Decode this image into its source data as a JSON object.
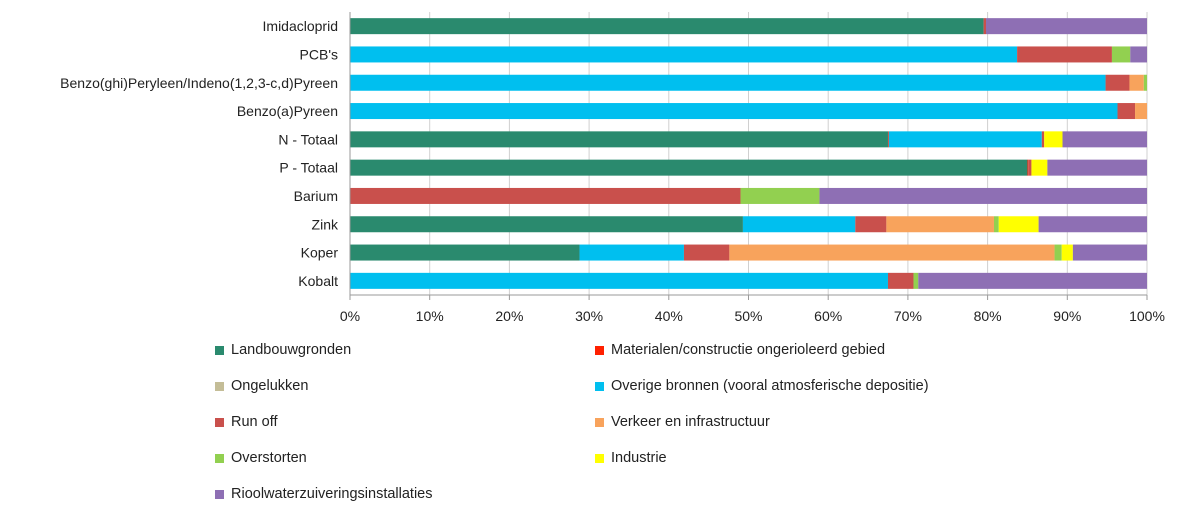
{
  "chart_data": {
    "type": "bar",
    "orientation": "horizontal",
    "stacked": true,
    "percent": true,
    "categories": [
      "Imidacloprid",
      "PCB's",
      "Benzo(ghi)Peryleen/Indeno(1,2,3-c,d)Pyreen",
      "Benzo(a)Pyreen",
      "N - Totaal",
      "P - Totaal",
      "Barium",
      "Zink",
      "Koper",
      "Kobalt"
    ],
    "series": [
      {
        "name": "Landbouwgronden",
        "color": "#2a8a6e",
        "values": [
          79.5,
          0,
          0,
          0,
          67.5,
          85,
          0,
          49.3,
          28.8,
          0
        ]
      },
      {
        "name": "Materialen/constructie ongerioleerd gebied",
        "color": "#ff2000",
        "values": [
          0,
          0,
          0,
          0,
          0.1,
          0.1,
          0,
          0,
          0,
          0
        ]
      },
      {
        "name": "Ongelukken",
        "color": "#c4bd97",
        "values": [
          0,
          0,
          0,
          0,
          0,
          0,
          0,
          0,
          0,
          0
        ]
      },
      {
        "name": "Overige bronnen (vooral atmosferische depositie)",
        "color": "#00bfef",
        "values": [
          0,
          83.7,
          94.8,
          96.3,
          19.2,
          0,
          0,
          14.1,
          13.1,
          67.5
        ]
      },
      {
        "name": "Run off",
        "color": "#c9504c",
        "values": [
          0.3,
          11.9,
          3,
          2.2,
          0.3,
          0.4,
          49,
          3.9,
          5.7,
          3.2
        ]
      },
      {
        "name": "Verkeer en infrastructuur",
        "color": "#f8a35c",
        "values": [
          0,
          0,
          1.8,
          1.5,
          0,
          0,
          0,
          13.5,
          40.8,
          0
        ]
      },
      {
        "name": "Overstorten",
        "color": "#92d050",
        "values": [
          0,
          2.3,
          0.4,
          0,
          0,
          0,
          9.9,
          0.6,
          0.9,
          0.6
        ]
      },
      {
        "name": "Industrie",
        "color": "#ffff00",
        "values": [
          0,
          0,
          0,
          0,
          2.3,
          2,
          0,
          5,
          1.4,
          0
        ]
      },
      {
        "name": "Rioolwaterzuiveringsinstallaties",
        "color": "#8e6fb4",
        "values": [
          20.2,
          2.1,
          0,
          0,
          10.6,
          12.5,
          41.1,
          13.6,
          9.3,
          28.7
        ]
      }
    ],
    "xticks": [
      "0%",
      "10%",
      "20%",
      "30%",
      "40%",
      "50%",
      "60%",
      "70%",
      "80%",
      "90%",
      "100%"
    ],
    "xlim": [
      0,
      100
    ],
    "grid": "vertical",
    "legend_position": "bottom",
    "title": "",
    "xlabel": "",
    "ylabel": ""
  }
}
